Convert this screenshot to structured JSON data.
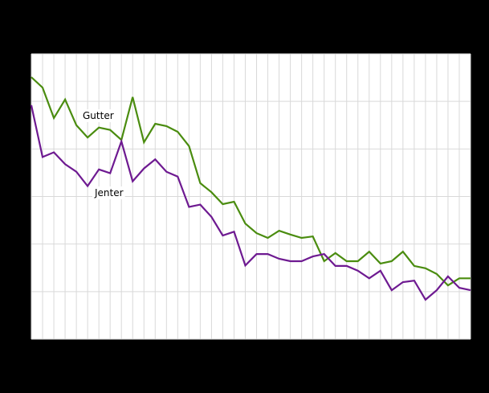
{
  "chart_data": {
    "type": "line",
    "title": "",
    "xlabel": "",
    "ylabel": "",
    "x_count": 40,
    "x": [
      1,
      2,
      3,
      4,
      5,
      6,
      7,
      8,
      9,
      10,
      11,
      12,
      13,
      14,
      15,
      16,
      17,
      18,
      19,
      20,
      21,
      22,
      23,
      24,
      25,
      26,
      27,
      28,
      29,
      30,
      31,
      32,
      33,
      34,
      35,
      36,
      37,
      38,
      39,
      40
    ],
    "y_scale_note": "Axis tick labels not legible in screenshot; values expressed in gridline units (0 = bottom gridline, 6 = top gridline)",
    "ylim": [
      0,
      6
    ],
    "y_gridlines": 7,
    "x_gridlines": 40,
    "grid": true,
    "legend": "inline labels",
    "series": [
      {
        "name": "Gutter",
        "color": "#4a8c0f",
        "values": [
          5.51,
          5.29,
          4.65,
          5.04,
          4.5,
          4.24,
          4.45,
          4.4,
          4.19,
          5.09,
          4.14,
          4.53,
          4.48,
          4.36,
          4.06,
          3.28,
          3.09,
          2.84,
          2.89,
          2.43,
          2.23,
          2.13,
          2.28,
          2.2,
          2.13,
          2.16,
          1.64,
          1.81,
          1.64,
          1.64,
          1.84,
          1.59,
          1.64,
          1.84,
          1.54,
          1.49,
          1.37,
          1.13,
          1.28,
          1.28
        ],
        "label_pos": {
          "x": 103,
          "y": 148
        }
      },
      {
        "name": "Jenter",
        "color": "#6e1a91",
        "values": [
          4.92,
          3.83,
          3.93,
          3.68,
          3.52,
          3.22,
          3.57,
          3.49,
          4.16,
          3.32,
          3.59,
          3.78,
          3.52,
          3.42,
          2.78,
          2.83,
          2.57,
          2.18,
          2.26,
          1.55,
          1.79,
          1.79,
          1.69,
          1.64,
          1.64,
          1.74,
          1.79,
          1.54,
          1.54,
          1.44,
          1.28,
          1.44,
          1.03,
          1.2,
          1.23,
          0.83,
          1.03,
          1.32,
          1.08,
          1.03
        ],
        "label_pos": {
          "x": 118,
          "y": 244
        }
      }
    ]
  },
  "colors": {
    "background": "#000000",
    "plot_background": "#ffffff",
    "grid": "#d9d9d9"
  }
}
